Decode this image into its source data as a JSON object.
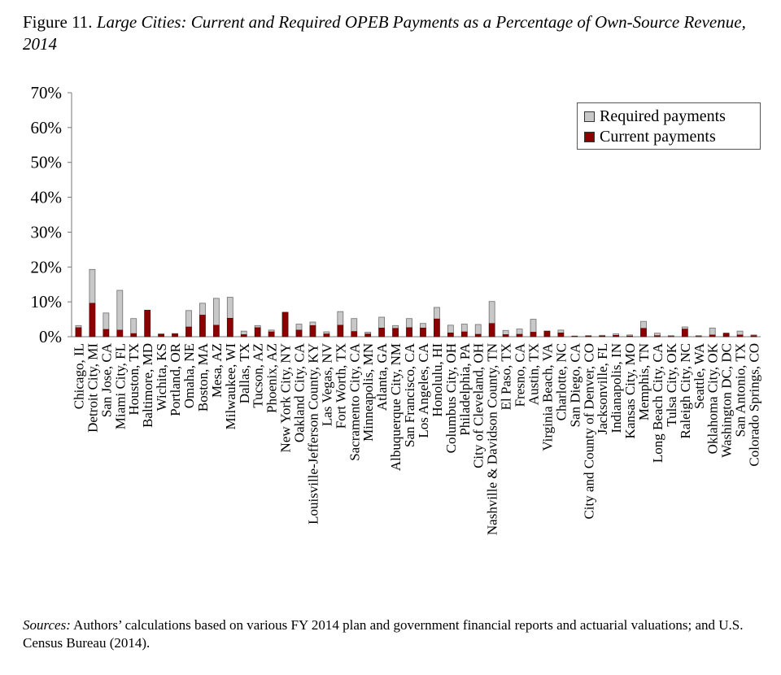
{
  "figure": {
    "label": "Figure 11.",
    "title": "Large Cities: Current and Required OPEB Payments as a Percentage of Own-Source Revenue, 2014"
  },
  "source": {
    "label": "Sources:",
    "text": "Authors’ calculations based on various FY 2014 plan and government financial reports and actuarial valuations; and U.S. Census Bureau (2014)."
  },
  "chart_data": {
    "type": "bar",
    "stacked": false,
    "title": "Large Cities: Current and Required OPEB Payments as a Percentage of Own-Source Revenue, 2014",
    "xlabel": "",
    "ylabel": "",
    "ylim": [
      0,
      70
    ],
    "y_ticks": [
      "0%",
      "10%",
      "20%",
      "30%",
      "40%",
      "50%",
      "60%",
      "70%"
    ],
    "legend_position": "top-right",
    "categories": [
      "Chicago, IL",
      "Detroit City, MI",
      "San Jose, CA",
      "Miami City, FL",
      "Houston, TX",
      "Baltimore, MD",
      "Wichita, KS",
      "Portland, OR",
      "Omaha, NE",
      "Boston, MA",
      "Mesa, AZ",
      "Milwaukee, WI",
      "Dallas, TX",
      "Tucson, AZ",
      "Phoenix, AZ",
      "New York City, NY",
      "Oakland City, CA",
      "Louisville-Jefferson County, KY",
      "Las Vegas, NV",
      "Fort Worth, TX",
      "Sacramento City, CA",
      "Minneapolis, MN",
      "Atlanta, GA",
      "Albuquerque City, NM",
      "San Francisco, CA",
      "Los Angeles, CA",
      "Honolulu, HI",
      "Columbus City, OH",
      "Philadelphia, PA",
      "City of Cleveland, OH",
      "Nashville & Davidson County, TN",
      "El Paso, TX",
      "Fresno, CA",
      "Austin, TX",
      "Virginia Beach, VA",
      "Charlotte, NC",
      "San Diego, CA",
      "City and County of Denver, CO",
      "Jacksonville, FL",
      "Indianapolis, IN",
      "Kansas City, MO",
      "Memphis, TN",
      "Long Beach City, CA",
      "Tulsa City, OK",
      "Raleigh City, NC",
      "Seattle, WA",
      "Oklahoma City, OK",
      "Washington DC, DC",
      "San Antonio, TX",
      "Colorado Springs, CO"
    ],
    "series": [
      {
        "name": "Required payments",
        "color": "#c8c8c8",
        "values": [
          3.2,
          19.3,
          6.8,
          13.3,
          5.2,
          7.6,
          0.8,
          0.9,
          7.5,
          9.6,
          11.0,
          11.3,
          1.6,
          3.2,
          1.9,
          7.0,
          3.6,
          4.2,
          1.4,
          7.2,
          5.2,
          1.3,
          5.6,
          3.2,
          5.2,
          3.8,
          8.4,
          3.3,
          3.6,
          3.5,
          10.1,
          1.8,
          2.2,
          5.0,
          1.6,
          1.9,
          0.2,
          0.3,
          0.4,
          0.8,
          0.5,
          4.4,
          1.0,
          0.3,
          2.8,
          0.3,
          2.5,
          1.0,
          1.6,
          0.5
        ]
      },
      {
        "name": "Current payments",
        "color": "#8b0000",
        "values": [
          2.6,
          9.6,
          2.1,
          1.9,
          0.9,
          7.6,
          0.7,
          0.8,
          2.8,
          6.2,
          3.3,
          5.3,
          0.6,
          2.6,
          1.4,
          7.0,
          1.9,
          3.2,
          0.8,
          3.3,
          1.5,
          0.8,
          2.5,
          2.4,
          2.6,
          2.5,
          5.1,
          1.1,
          1.4,
          0.7,
          3.8,
          0.6,
          0.7,
          1.3,
          1.6,
          1.1,
          0.1,
          0.2,
          0.2,
          0.4,
          0.2,
          2.4,
          0.3,
          0.1,
          2.2,
          0.1,
          0.5,
          1.0,
          0.5,
          0.3
        ]
      }
    ]
  }
}
